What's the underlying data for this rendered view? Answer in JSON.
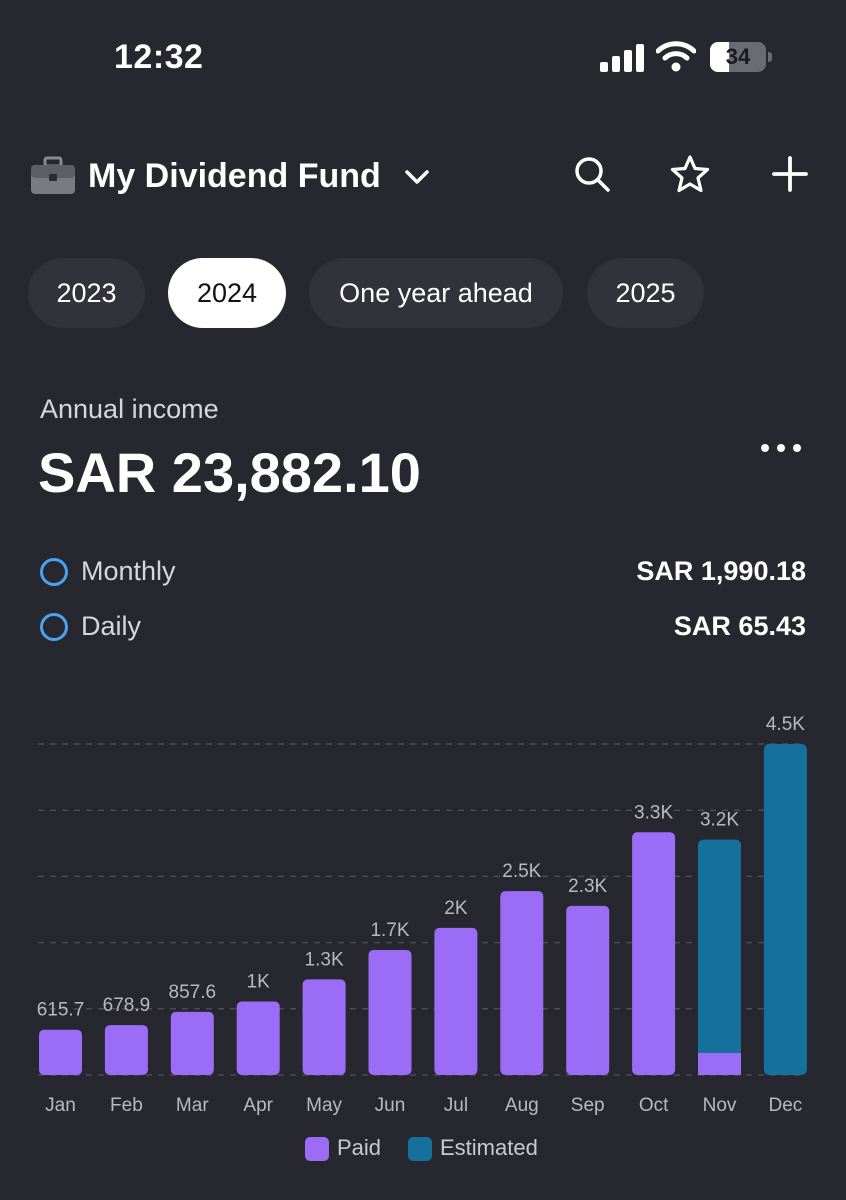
{
  "status": {
    "time": "12:32",
    "battery": "34",
    "battery_level": 0.34
  },
  "header": {
    "title": "My Dividend Fund"
  },
  "tabs": [
    {
      "label": "2023",
      "active": false
    },
    {
      "label": "2024",
      "active": true
    },
    {
      "label": "One year ahead",
      "active": false
    },
    {
      "label": "2025",
      "active": false
    }
  ],
  "income": {
    "label": "Annual income",
    "value": "SAR 23,882.10",
    "monthly_label": "Monthly",
    "monthly_value": "SAR 1,990.18",
    "daily_label": "Daily",
    "daily_value": "SAR 65.43"
  },
  "colors": {
    "paid": "#9b6cf6",
    "estimated": "#16709c",
    "accent": "#4aa3f0"
  },
  "chart_data": {
    "type": "bar",
    "categories": [
      "Jan",
      "Feb",
      "Mar",
      "Apr",
      "May",
      "Jun",
      "Jul",
      "Aug",
      "Sep",
      "Oct",
      "Nov",
      "Dec"
    ],
    "series": [
      {
        "name": "Paid",
        "values": [
          615.7,
          678.9,
          857.6,
          1000,
          1300,
          1700,
          2000,
          2500,
          2300,
          3300,
          300,
          0
        ]
      },
      {
        "name": "Estimated",
        "values": [
          0,
          0,
          0,
          0,
          0,
          0,
          0,
          0,
          0,
          0,
          2900,
          4500
        ]
      }
    ],
    "data_labels": [
      "615.7",
      "678.9",
      "857.6",
      "1K",
      "1.3K",
      "1.7K",
      "2K",
      "2.5K",
      "2.3K",
      "3.3K",
      "3.2K",
      "4.5K"
    ],
    "ylim": [
      0,
      4500
    ],
    "grid": true,
    "stacked": true,
    "legend": "bottom-center"
  }
}
